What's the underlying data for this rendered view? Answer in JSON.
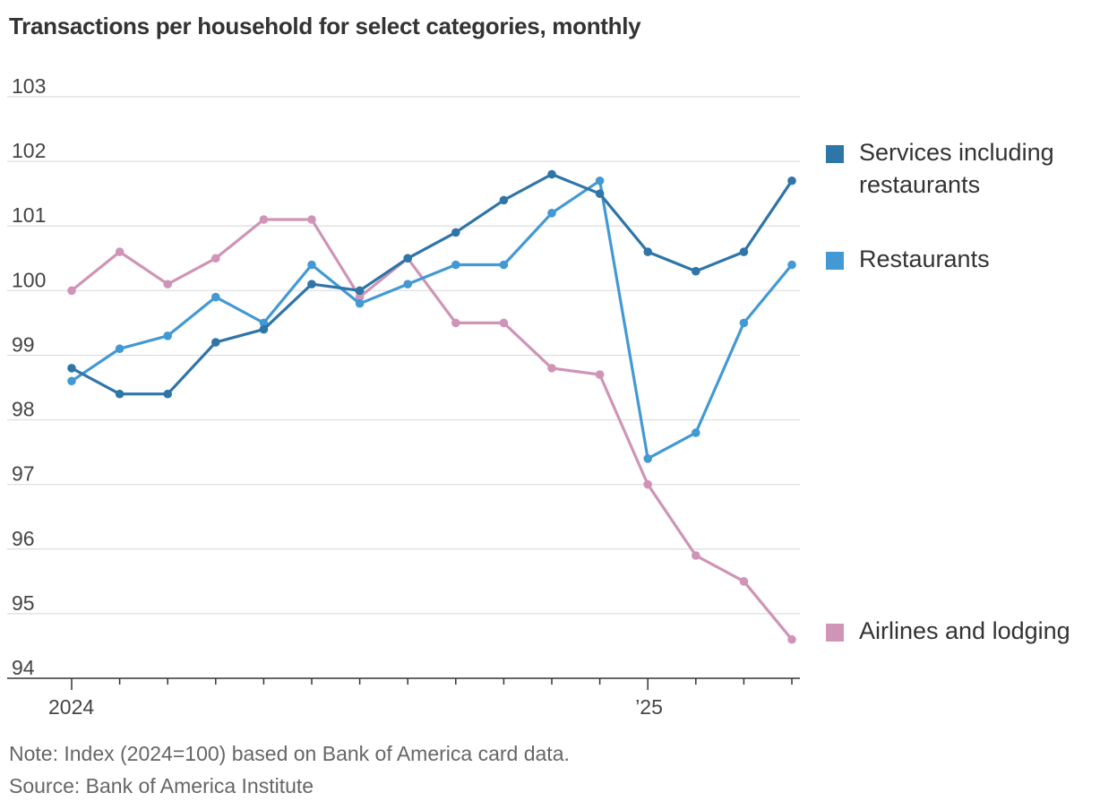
{
  "header": {
    "title": "Transactions per household for select categories, monthly"
  },
  "legend": {
    "services_label": "Services including restaurants",
    "restaurants_label": "Restaurants",
    "airlines_label": "Airlines and lodging"
  },
  "footer": {
    "note": "Note: Index (2024=100) based on Bank of America card data.",
    "source": "Source: Bank of America Institute"
  },
  "chart_data": {
    "type": "line",
    "title": "Transactions per household for select categories, monthly",
    "xlabel": "",
    "ylabel": "",
    "x": [
      "2024-01",
      "2024-02",
      "2024-03",
      "2024-04",
      "2024-05",
      "2024-06",
      "2024-07",
      "2024-08",
      "2024-09",
      "2024-10",
      "2024-11",
      "2024-12",
      "2025-01",
      "2025-02",
      "2025-03",
      "2025-04"
    ],
    "x_tick_labels": [
      {
        "index": 0,
        "label": "2024"
      },
      {
        "index": 12,
        "label": "’25"
      }
    ],
    "ylim": [
      94,
      103
    ],
    "yticks": [
      94,
      95,
      96,
      97,
      98,
      99,
      100,
      101,
      102,
      103
    ],
    "grid": true,
    "legend_position": "right",
    "series": [
      {
        "name": "Services including restaurants",
        "color": "#2e75a8",
        "values": [
          98.8,
          98.4,
          98.4,
          99.2,
          99.4,
          100.1,
          100.0,
          100.5,
          100.9,
          101.4,
          101.8,
          101.5,
          100.6,
          100.3,
          100.6,
          101.7
        ]
      },
      {
        "name": "Restaurants",
        "color": "#4299d4",
        "values": [
          98.6,
          99.1,
          99.3,
          99.9,
          99.5,
          100.4,
          99.8,
          100.1,
          100.4,
          100.4,
          101.2,
          101.7,
          97.4,
          97.8,
          99.5,
          100.4
        ]
      },
      {
        "name": "Airlines and lodging",
        "color": "#cf94b6",
        "values": [
          100.0,
          100.6,
          100.1,
          100.5,
          101.1,
          101.1,
          99.9,
          100.5,
          99.5,
          99.5,
          98.8,
          98.7,
          97.0,
          95.9,
          95.5,
          94.6
        ]
      }
    ]
  }
}
